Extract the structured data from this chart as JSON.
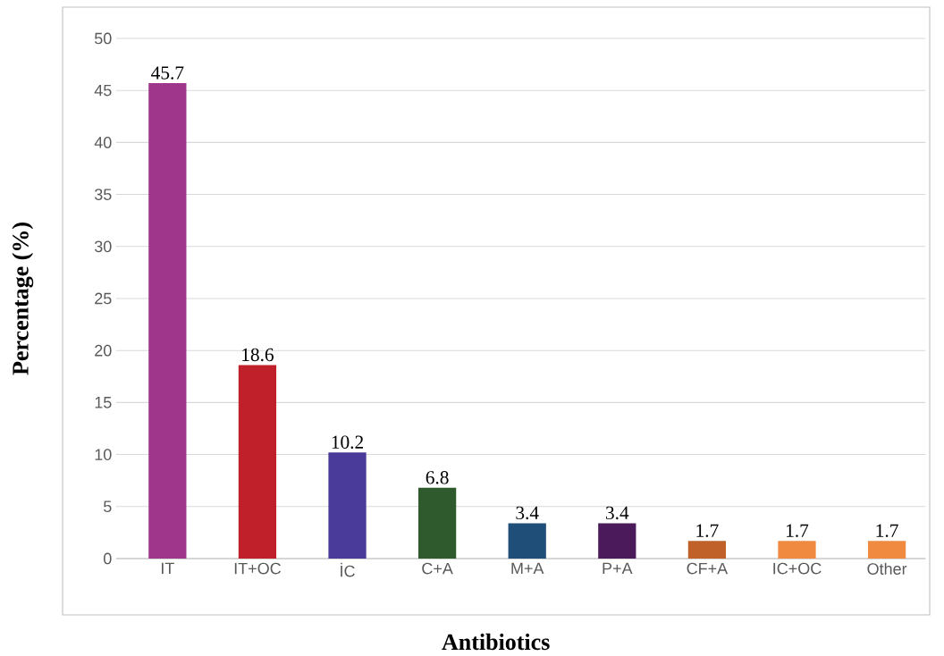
{
  "chart_data": {
    "type": "bar",
    "xlabel": "Antibiotics",
    "ylabel": "Percentage (%)",
    "categories": [
      "IT",
      "IT+OC",
      "İC",
      "C+A",
      "M+A",
      "P+A",
      "CF+A",
      "IC+OC",
      "Other"
    ],
    "values": [
      45.7,
      18.6,
      10.2,
      6.8,
      3.4,
      3.4,
      1.7,
      1.7,
      1.7
    ],
    "colors": [
      "#a0358c",
      "#c0202a",
      "#4a3a9a",
      "#2e5a2e",
      "#1f4e79",
      "#4a1a5a",
      "#c0612a",
      "#f08a40",
      "#f08a40"
    ],
    "ylim": [
      0,
      50
    ],
    "yticks": [
      0,
      5,
      10,
      15,
      20,
      25,
      30,
      35,
      40,
      45,
      50
    ],
    "grid": "y",
    "data_labels": true
  }
}
